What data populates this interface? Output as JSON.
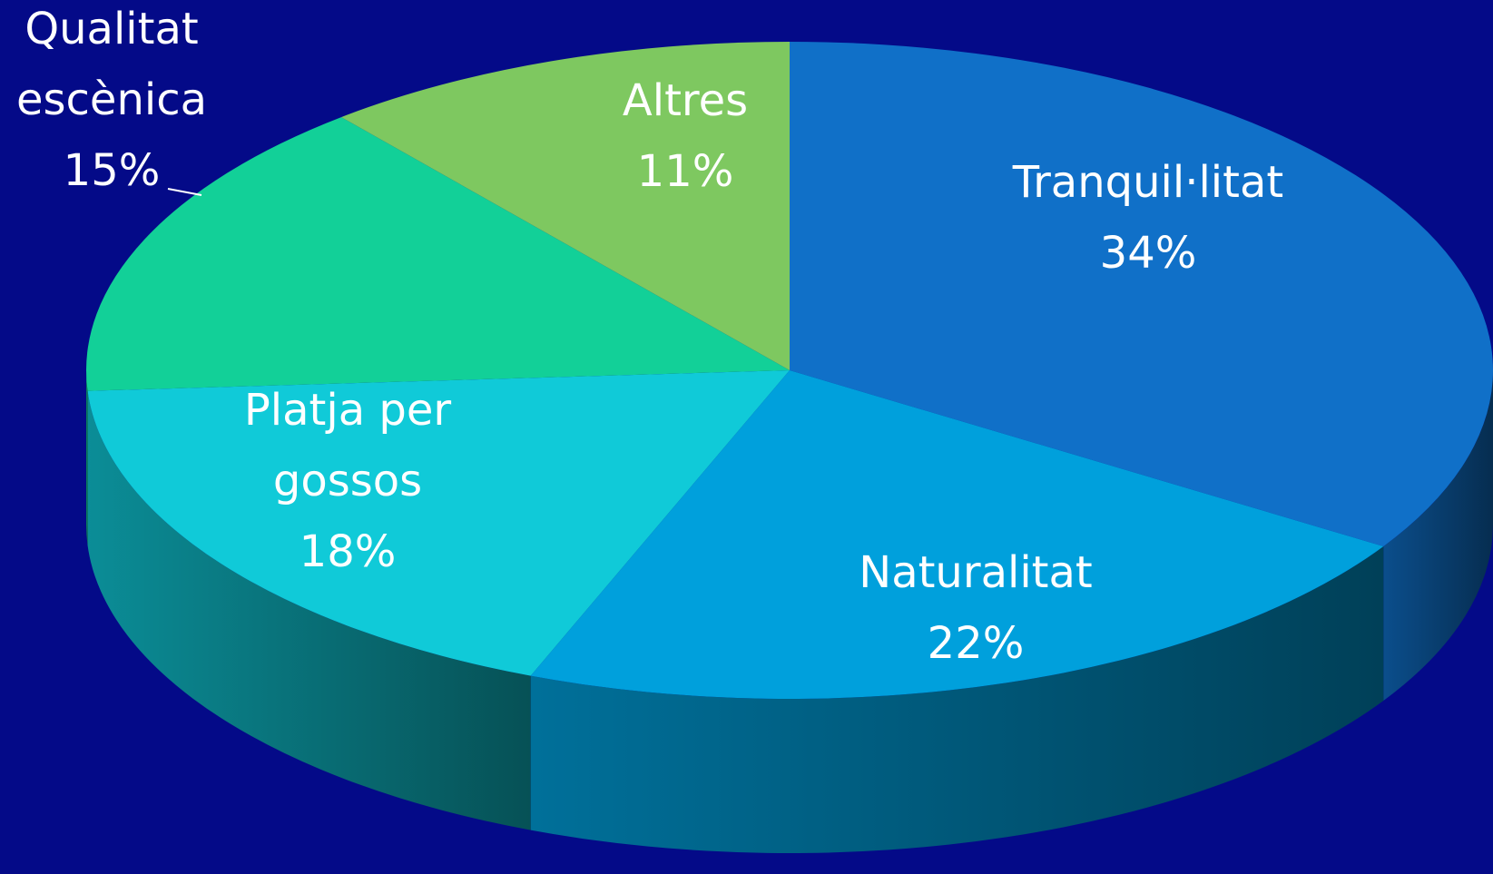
{
  "chart_data": {
    "type": "pie",
    "categories": [
      "Tranquil·litat",
      "Naturalitat",
      "Platja per gossos",
      "Qualitat escènica",
      "Altres"
    ],
    "values": [
      34,
      22,
      18,
      15,
      11
    ],
    "value_labels": [
      "34%",
      "22%",
      "18%",
      "15%",
      "11%"
    ],
    "colors": [
      "#1070c8",
      "#00a0dc",
      "#10cad8",
      "#12d098",
      "#7ec860"
    ]
  }
}
